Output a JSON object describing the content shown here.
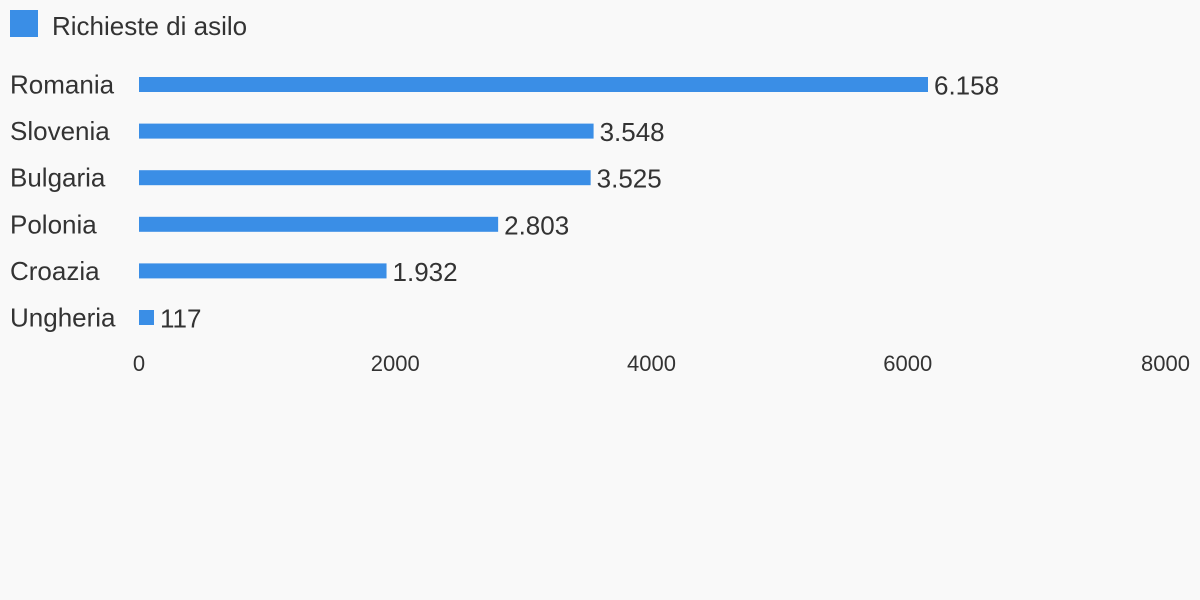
{
  "chart_data": {
    "type": "bar",
    "orientation": "horizontal",
    "categories": [
      "Romania",
      "Slovenia",
      "Bulgaria",
      "Polonia",
      "Croazia",
      "Ungheria"
    ],
    "series": [
      {
        "name": "Richieste di asilo",
        "values": [
          6158,
          3548,
          3525,
          2803,
          1932,
          117
        ],
        "value_labels": [
          "6.158",
          "3.548",
          "3.525",
          "2.803",
          "1.932",
          "117"
        ],
        "color": "#3a8ee6"
      }
    ],
    "xlim": [
      0,
      8000
    ],
    "xticks": [
      0,
      2000,
      4000,
      6000,
      8000
    ],
    "xtick_labels": [
      "0",
      "2000",
      "4000",
      "6000",
      "8000"
    ],
    "legend_position": "top-left",
    "grid": false
  },
  "colors": {
    "bar": "#3a8ee6",
    "text": "#333333",
    "background": "#f9f9f9"
  }
}
